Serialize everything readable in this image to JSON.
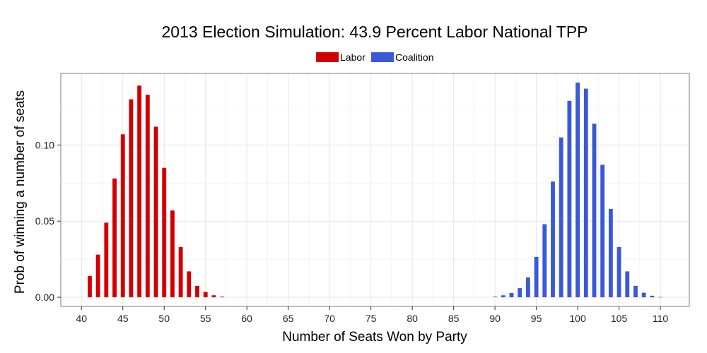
{
  "chart_data": {
    "type": "bar",
    "title": "2013 Election Simulation: 43.9 Percent Labor National TPP",
    "xlabel": "Number of Seats Won by Party",
    "ylabel": "Prob of winning a number of seats",
    "xlim": [
      37.5,
      113.5
    ],
    "ylim": [
      -0.006,
      0.147
    ],
    "x_ticks": [
      40,
      45,
      50,
      55,
      60,
      65,
      70,
      75,
      80,
      85,
      90,
      95,
      100,
      105,
      110
    ],
    "y_ticks": [
      0.0,
      0.05,
      0.1
    ],
    "y_tick_labels": [
      "0.00",
      "0.05",
      "0.10"
    ],
    "grid": true,
    "legend_position": "top",
    "series": [
      {
        "name": "Labor",
        "color": "#d10000",
        "x": [
          41,
          42,
          43,
          44,
          45,
          46,
          47,
          48,
          49,
          50,
          51,
          52,
          53,
          54,
          55,
          56,
          57
        ],
        "values": [
          0.014,
          0.028,
          0.049,
          0.078,
          0.107,
          0.13,
          0.139,
          0.133,
          0.112,
          0.085,
          0.057,
          0.033,
          0.017,
          0.0075,
          0.0035,
          0.0013,
          0.0004
        ]
      },
      {
        "name": "Coalition",
        "color": "#3a59d6",
        "x": [
          90,
          91,
          92,
          93,
          94,
          95,
          96,
          97,
          98,
          99,
          100,
          101,
          102,
          103,
          104,
          105,
          106,
          107,
          108,
          109,
          110
        ],
        "values": [
          0.0004,
          0.0013,
          0.0028,
          0.006,
          0.013,
          0.0265,
          0.048,
          0.076,
          0.105,
          0.129,
          0.141,
          0.137,
          0.114,
          0.087,
          0.058,
          0.033,
          0.017,
          0.0075,
          0.003,
          0.001,
          0.0002
        ]
      }
    ]
  }
}
